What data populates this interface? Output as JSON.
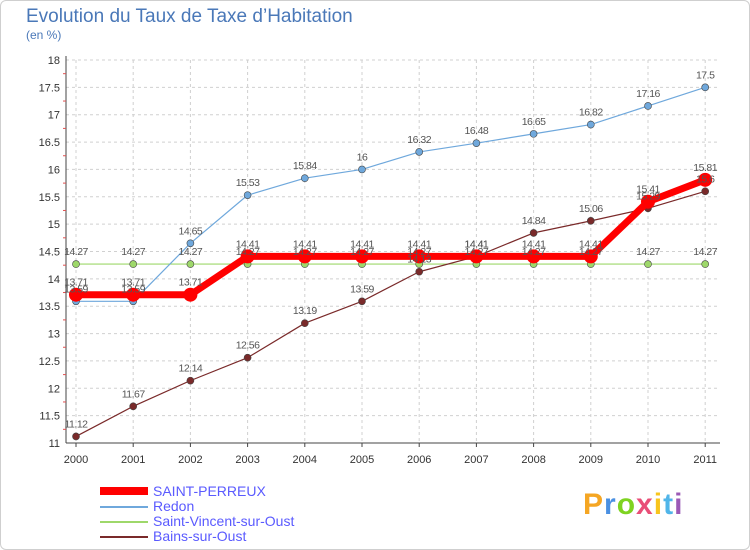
{
  "header": {
    "title": "Evolution du Taux de Taxe d’Habitation",
    "unit": "(en %)"
  },
  "logo": {
    "text": "Proxiti"
  },
  "chart_data": {
    "type": "line",
    "title": "Evolution du Taux de Taxe d’Habitation",
    "xlabel": "",
    "ylabel": "(en %)",
    "categories": [
      "2000",
      "2001",
      "2002",
      "2003",
      "2004",
      "2005",
      "2006",
      "2007",
      "2008",
      "2009",
      "2010",
      "2011"
    ],
    "ylim": [
      11,
      18
    ],
    "yticks": [
      "11",
      "11.5",
      "12",
      "12.5",
      "13",
      "13.5",
      "14",
      "14.5",
      "15",
      "15.5",
      "16",
      "16.5",
      "17",
      "17.5",
      "18"
    ],
    "legend_position": "bottom-left",
    "series": [
      {
        "name": "SAINT-PERREUX",
        "color": "#ff0000",
        "values": [
          13.71,
          13.71,
          13.71,
          14.41,
          14.41,
          14.41,
          14.41,
          14.41,
          14.41,
          14.41,
          15.41,
          15.81
        ],
        "labels": [
          "13.71",
          "13.71",
          "13.71",
          "14.41",
          "14.41",
          "14.41",
          "14.41",
          "14.41",
          "14.41",
          "14.41",
          "15.41",
          "15.81"
        ]
      },
      {
        "name": "Redon",
        "color": "#6fa8dc",
        "values": [
          13.59,
          13.59,
          14.65,
          15.53,
          15.84,
          16,
          16.32,
          16.48,
          16.65,
          16.82,
          17.16,
          17.5
        ],
        "labels": [
          "13.59",
          "13.59",
          "14.65",
          "15.53",
          "15.84",
          "16",
          "16.32",
          "16.48",
          "16.65",
          "16.82",
          "17.16",
          "17.5"
        ]
      },
      {
        "name": "Saint-Vincent-sur-Oust",
        "color": "#9ed86a",
        "values": [
          14.27,
          14.27,
          14.27,
          14.27,
          14.27,
          14.27,
          14.27,
          14.27,
          14.27,
          14.27,
          14.27,
          14.27
        ],
        "labels": [
          "14.27",
          "14.27",
          "14.27",
          "14.27",
          "14.27",
          "14.27",
          "14.27",
          "14.27",
          "14.27",
          "14.27",
          "14.27",
          "14.27"
        ]
      },
      {
        "name": "Bains-sur-Oust",
        "color": "#7a2a2a",
        "values": [
          11.12,
          11.67,
          12.14,
          12.56,
          13.19,
          13.59,
          14.13,
          14.41,
          14.84,
          15.06,
          15.29,
          15.6
        ],
        "labels": [
          "11.12",
          "11.67",
          "12.14",
          "12.56",
          "13.19",
          "13.59",
          "14.13",
          "14.41",
          "14.84",
          "15.06",
          "15.29",
          "15.6"
        ]
      }
    ]
  }
}
